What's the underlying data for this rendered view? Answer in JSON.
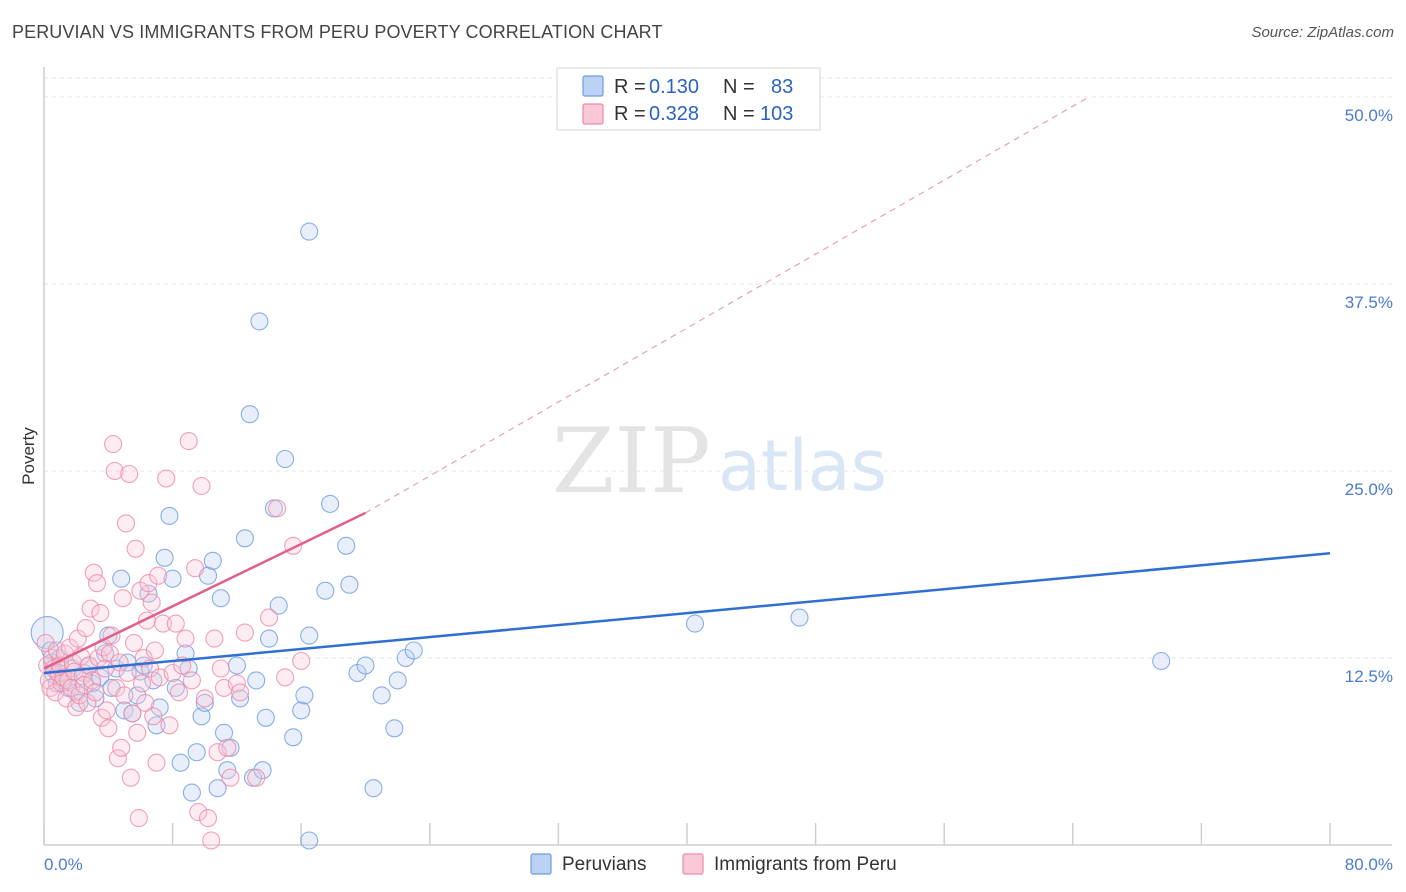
{
  "header": {
    "title": "PERUVIAN VS IMMIGRANTS FROM PERU POVERTY CORRELATION CHART",
    "source": "Source: ZipAtlas.com"
  },
  "watermark": {
    "zip": "ZIP",
    "atlas": "atlas"
  },
  "legend": {
    "r_label": "R =",
    "n_label": "N =",
    "rows": [
      {
        "r": "0.130",
        "n": "83",
        "color": "#6e9be0"
      },
      {
        "r": "0.328",
        "n": "103",
        "color": "#ee8aa8"
      }
    ]
  },
  "chart_data": {
    "type": "scatter",
    "title": "PERUVIAN VS IMMIGRANTS FROM PERU POVERTY CORRELATION CHART",
    "xlabel": "",
    "ylabel": "Poverty",
    "xlim": [
      0,
      80
    ],
    "ylim": [
      0,
      50
    ],
    "x_tick_labels": [
      "0.0%",
      "80.0%"
    ],
    "y_tick_labels": [
      "12.5%",
      "25.0%",
      "37.5%",
      "50.0%"
    ],
    "y_ticks": [
      12.5,
      25,
      37.5,
      50
    ],
    "series": [
      {
        "name": "Peruvians",
        "color": "#6e9be0",
        "line_color": "#2f6fd0",
        "r": 0.13,
        "n": 83,
        "trend": {
          "x0": 0,
          "y0": 11.5,
          "x1": 80,
          "y1": 19.5
        },
        "points": [
          [
            0.2,
            14.2
          ],
          [
            0.4,
            13.0
          ],
          [
            0.5,
            12.2
          ],
          [
            0.6,
            11.4
          ],
          [
            0.8,
            10.8
          ],
          [
            1.0,
            12.5
          ],
          [
            1.2,
            11.0
          ],
          [
            1.5,
            10.5
          ],
          [
            1.8,
            11.8
          ],
          [
            2.0,
            10.2
          ],
          [
            2.2,
            9.5
          ],
          [
            2.5,
            11.5
          ],
          [
            2.8,
            12.0
          ],
          [
            3.0,
            10.8
          ],
          [
            3.2,
            9.8
          ],
          [
            3.5,
            11.2
          ],
          [
            3.8,
            12.8
          ],
          [
            4.0,
            14.0
          ],
          [
            4.2,
            10.5
          ],
          [
            4.5,
            11.8
          ],
          [
            4.8,
            17.8
          ],
          [
            5.0,
            9.0
          ],
          [
            5.2,
            12.2
          ],
          [
            5.5,
            8.8
          ],
          [
            5.8,
            10.0
          ],
          [
            6.0,
            11.6
          ],
          [
            6.2,
            12.0
          ],
          [
            6.5,
            16.8
          ],
          [
            6.8,
            11.0
          ],
          [
            7.0,
            8.0
          ],
          [
            7.2,
            9.2
          ],
          [
            7.5,
            19.2
          ],
          [
            7.8,
            22.0
          ],
          [
            8.0,
            17.8
          ],
          [
            8.2,
            10.5
          ],
          [
            8.5,
            5.5
          ],
          [
            8.8,
            12.8
          ],
          [
            9.0,
            11.8
          ],
          [
            9.2,
            3.5
          ],
          [
            9.5,
            6.2
          ],
          [
            9.8,
            8.6
          ],
          [
            10.0,
            9.5
          ],
          [
            10.2,
            18.0
          ],
          [
            10.5,
            19.0
          ],
          [
            10.8,
            3.8
          ],
          [
            11.0,
            16.5
          ],
          [
            11.2,
            7.5
          ],
          [
            11.4,
            5.0
          ],
          [
            11.6,
            6.5
          ],
          [
            12.0,
            12.0
          ],
          [
            12.2,
            9.8
          ],
          [
            12.5,
            20.5
          ],
          [
            12.8,
            28.8
          ],
          [
            13.0,
            4.5
          ],
          [
            13.2,
            11.0
          ],
          [
            13.4,
            35.0
          ],
          [
            13.6,
            5.0
          ],
          [
            13.8,
            8.5
          ],
          [
            14.0,
            13.8
          ],
          [
            14.3,
            22.5
          ],
          [
            14.6,
            16.0
          ],
          [
            15.0,
            25.8
          ],
          [
            15.5,
            7.2
          ],
          [
            16.0,
            9.0
          ],
          [
            16.2,
            10.0
          ],
          [
            16.5,
            0.3
          ],
          [
            17.5,
            17.0
          ],
          [
            17.8,
            22.8
          ],
          [
            18.8,
            20.0
          ],
          [
            19.0,
            17.4
          ],
          [
            20.5,
            3.8
          ],
          [
            21.0,
            10.0
          ],
          [
            21.8,
            7.8
          ],
          [
            22.5,
            12.5
          ],
          [
            23.0,
            13.0
          ],
          [
            16.5,
            14.0
          ],
          [
            19.5,
            11.5
          ],
          [
            20.0,
            12.0
          ],
          [
            22.0,
            11.0
          ],
          [
            40.5,
            14.8
          ],
          [
            47.0,
            15.2
          ],
          [
            69.5,
            12.3
          ],
          [
            16.5,
            41.0
          ]
        ]
      },
      {
        "name": "Immigrants from Peru",
        "color": "#ee8aa8",
        "line_color": "#e0608a",
        "r": 0.328,
        "n": 103,
        "trend": {
          "x0": 0,
          "y0": 11.8,
          "x1": 20,
          "y1": 22.2
        },
        "trend_ext": {
          "x0": 20,
          "y0": 22.2,
          "x1": 65,
          "y1": 50.0
        },
        "points": [
          [
            0.1,
            13.5
          ],
          [
            0.2,
            12.0
          ],
          [
            0.3,
            11.0
          ],
          [
            0.4,
            10.5
          ],
          [
            0.5,
            12.5
          ],
          [
            0.6,
            11.8
          ],
          [
            0.7,
            10.2
          ],
          [
            0.8,
            13.0
          ],
          [
            0.9,
            11.5
          ],
          [
            1.0,
            12.0
          ],
          [
            1.1,
            10.8
          ],
          [
            1.2,
            11.2
          ],
          [
            1.3,
            12.8
          ],
          [
            1.4,
            9.8
          ],
          [
            1.5,
            11.0
          ],
          [
            1.6,
            13.2
          ],
          [
            1.7,
            10.5
          ],
          [
            1.8,
            12.2
          ],
          [
            1.9,
            11.6
          ],
          [
            2.0,
            9.2
          ],
          [
            2.1,
            13.8
          ],
          [
            2.2,
            10.0
          ],
          [
            2.3,
            12.6
          ],
          [
            2.4,
            11.3
          ],
          [
            2.5,
            10.7
          ],
          [
            2.6,
            14.5
          ],
          [
            2.7,
            9.5
          ],
          [
            2.8,
            12.0
          ],
          [
            2.9,
            15.8
          ],
          [
            3.0,
            11.0
          ],
          [
            3.1,
            18.2
          ],
          [
            3.2,
            10.2
          ],
          [
            3.3,
            17.5
          ],
          [
            3.4,
            12.5
          ],
          [
            3.5,
            15.5
          ],
          [
            3.6,
            8.5
          ],
          [
            3.7,
            13.2
          ],
          [
            3.8,
            11.8
          ],
          [
            3.9,
            9.0
          ],
          [
            4.0,
            7.8
          ],
          [
            4.1,
            12.8
          ],
          [
            4.2,
            14.0
          ],
          [
            4.3,
            26.8
          ],
          [
            4.4,
            25.0
          ],
          [
            4.5,
            10.5
          ],
          [
            4.6,
            5.8
          ],
          [
            4.7,
            12.2
          ],
          [
            4.8,
            6.5
          ],
          [
            4.9,
            16.5
          ],
          [
            5.0,
            10.0
          ],
          [
            5.1,
            21.5
          ],
          [
            5.2,
            11.5
          ],
          [
            5.3,
            24.8
          ],
          [
            5.4,
            4.5
          ],
          [
            5.5,
            8.8
          ],
          [
            5.6,
            13.5
          ],
          [
            5.7,
            19.8
          ],
          [
            5.8,
            7.5
          ],
          [
            5.9,
            1.8
          ],
          [
            6.0,
            17.0
          ],
          [
            6.1,
            10.8
          ],
          [
            6.2,
            12.5
          ],
          [
            6.3,
            9.5
          ],
          [
            6.4,
            15.0
          ],
          [
            6.5,
            17.5
          ],
          [
            6.6,
            11.8
          ],
          [
            6.7,
            16.2
          ],
          [
            6.8,
            8.6
          ],
          [
            6.9,
            13.0
          ],
          [
            7.0,
            5.5
          ],
          [
            7.1,
            18.0
          ],
          [
            7.2,
            11.2
          ],
          [
            7.4,
            14.8
          ],
          [
            7.6,
            24.5
          ],
          [
            7.8,
            8.0
          ],
          [
            8.0,
            11.5
          ],
          [
            8.2,
            14.8
          ],
          [
            8.4,
            10.2
          ],
          [
            8.6,
            12.0
          ],
          [
            8.8,
            13.8
          ],
          [
            9.0,
            27.0
          ],
          [
            9.2,
            11.0
          ],
          [
            9.4,
            18.5
          ],
          [
            9.6,
            2.2
          ],
          [
            9.8,
            24.0
          ],
          [
            10.0,
            9.8
          ],
          [
            10.2,
            1.8
          ],
          [
            10.4,
            0.3
          ],
          [
            10.6,
            13.8
          ],
          [
            10.8,
            6.2
          ],
          [
            11.0,
            11.8
          ],
          [
            11.2,
            10.5
          ],
          [
            11.4,
            6.5
          ],
          [
            11.6,
            4.5
          ],
          [
            12.0,
            10.8
          ],
          [
            12.2,
            10.2
          ],
          [
            12.5,
            14.2
          ],
          [
            13.2,
            4.5
          ],
          [
            14.0,
            15.2
          ],
          [
            14.5,
            22.5
          ],
          [
            15.0,
            11.2
          ],
          [
            15.5,
            20.0
          ],
          [
            16.0,
            12.3
          ]
        ]
      }
    ],
    "legend_entries": [
      "Peruvians",
      "Immigrants from Peru"
    ]
  }
}
